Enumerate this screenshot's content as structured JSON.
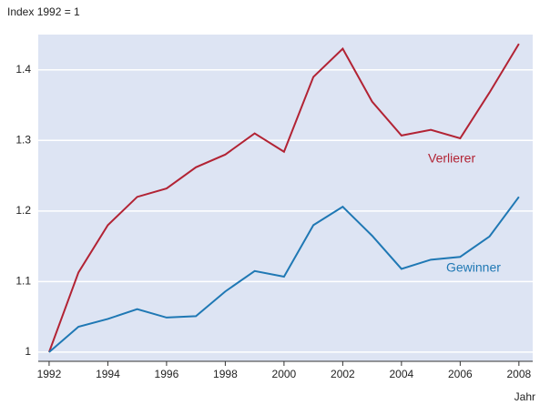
{
  "chart_data": {
    "type": "line",
    "y_axis_label": "Index 1992 = 1",
    "x_axis_label": "Jahr",
    "x": [
      1992,
      1993,
      1994,
      1995,
      1996,
      1997,
      1998,
      1999,
      2000,
      2001,
      2002,
      2003,
      2004,
      2005,
      2006,
      2007,
      2008
    ],
    "series": [
      {
        "name": "Verlierer",
        "color": "#b22334",
        "values": [
          1.0,
          1.113,
          1.18,
          1.22,
          1.232,
          1.262,
          1.28,
          1.31,
          1.284,
          1.39,
          1.43,
          1.355,
          1.307,
          1.315,
          1.303,
          1.368,
          1.437
        ]
      },
      {
        "name": "Gewinner",
        "color": "#1f78b4",
        "values": [
          1.0,
          1.036,
          1.047,
          1.061,
          1.049,
          1.051,
          1.086,
          1.115,
          1.107,
          1.18,
          1.206,
          1.165,
          1.118,
          1.131,
          1.135,
          1.164,
          1.22
        ]
      }
    ],
    "xlim": [
      1991.63,
      2008.47
    ],
    "ylim": [
      0.987,
      1.45
    ],
    "xticks": [
      1992,
      1994,
      1996,
      1998,
      2000,
      2002,
      2004,
      2006,
      2008
    ],
    "yticks": [
      1,
      1.1,
      1.2,
      1.3,
      1.4
    ],
    "grid": true,
    "background": "#dde4f3"
  }
}
